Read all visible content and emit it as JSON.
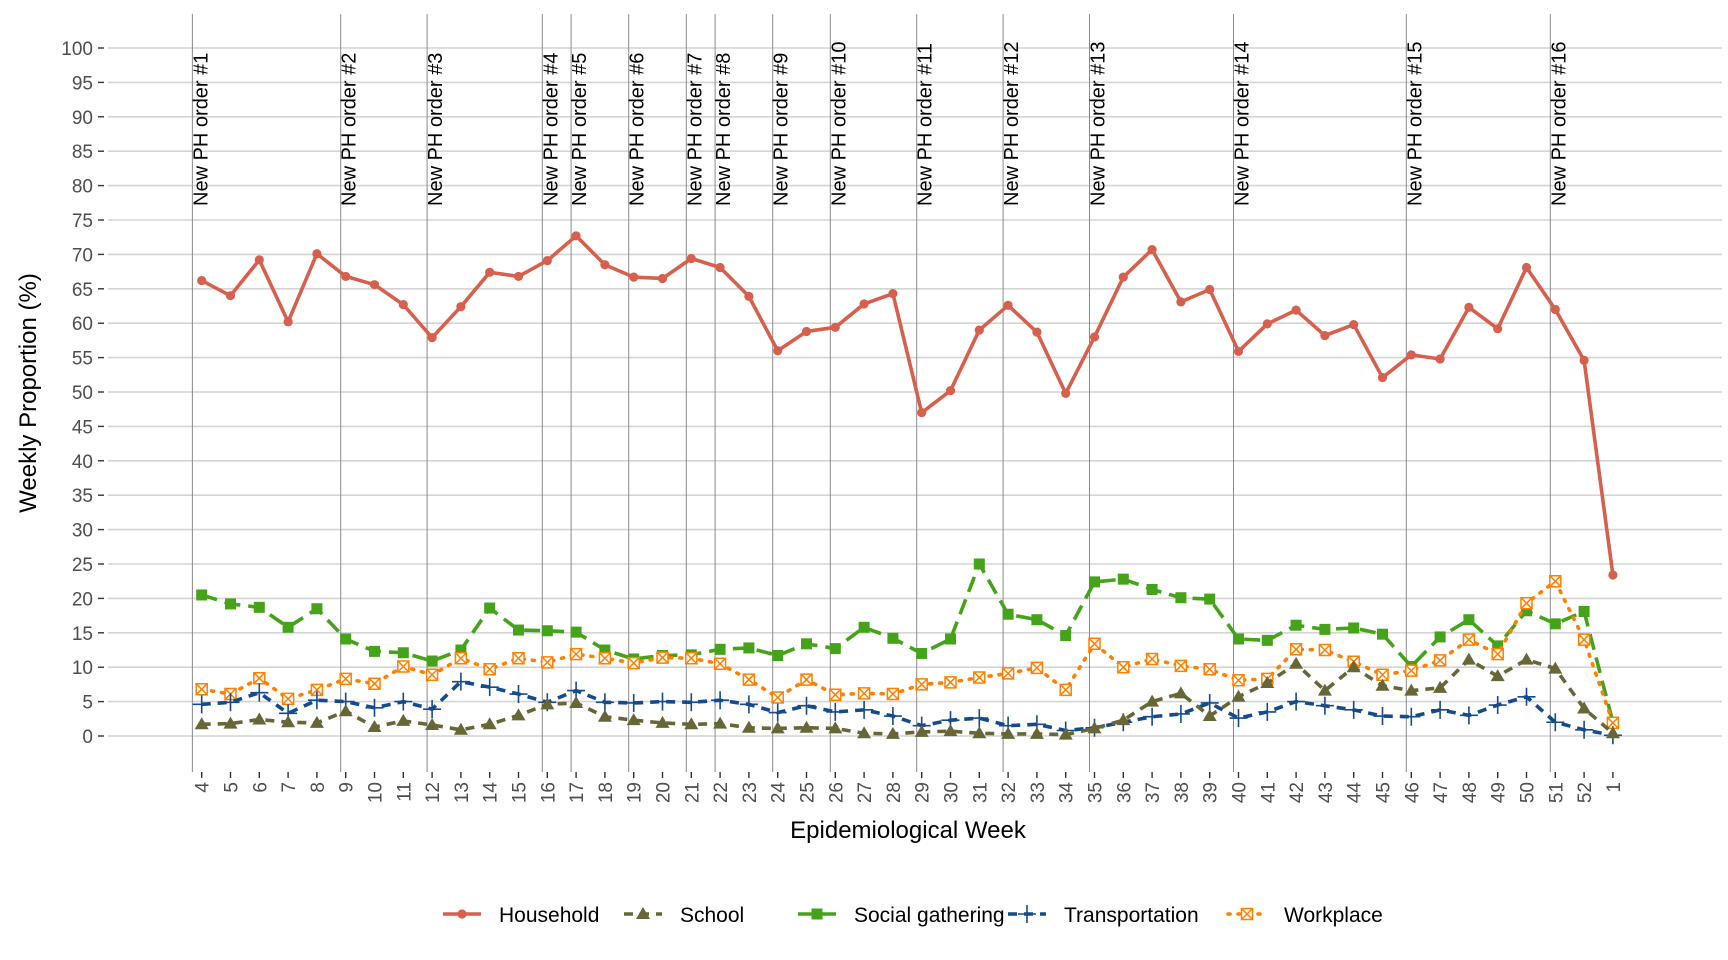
{
  "chart_data": {
    "type": "line",
    "title": "",
    "xlabel": "Epidemiological Week",
    "ylabel": "Weekly Proportion (%)",
    "ylim": [
      0,
      100
    ],
    "yticks": [
      0,
      5,
      10,
      15,
      20,
      25,
      30,
      35,
      40,
      45,
      50,
      55,
      60,
      65,
      70,
      75,
      80,
      85,
      90,
      95,
      100
    ],
    "grid": true,
    "legend_position": "bottom",
    "categories": [
      "4",
      "5",
      "6",
      "7",
      "8",
      "9",
      "10",
      "11",
      "12",
      "13",
      "14",
      "15",
      "16",
      "17",
      "18",
      "19",
      "20",
      "21",
      "22",
      "23",
      "24",
      "25",
      "26",
      "27",
      "28",
      "29",
      "30",
      "31",
      "32",
      "33",
      "34",
      "35",
      "36",
      "37",
      "38",
      "39",
      "40",
      "41",
      "42",
      "43",
      "44",
      "45",
      "46",
      "47",
      "48",
      "49",
      "50",
      "51",
      "52",
      "1"
    ],
    "series": [
      {
        "name": "Household",
        "color": "#D6604D",
        "marker": "circle",
        "linetype": "solid",
        "values": [
          66.2,
          64.0,
          69.2,
          60.2,
          70.1,
          66.8,
          65.6,
          62.7,
          57.9,
          62.4,
          67.4,
          66.8,
          69.1,
          72.7,
          68.5,
          66.7,
          66.5,
          69.4,
          68.1,
          63.9,
          56.0,
          58.8,
          59.4,
          62.8,
          64.3,
          47.0,
          50.2,
          59.0,
          62.6,
          58.7,
          49.8,
          58.0,
          66.7,
          70.7,
          63.1,
          64.9,
          55.9,
          59.9,
          61.9,
          58.2,
          59.8,
          52.1,
          55.4,
          54.8,
          62.3,
          59.2,
          68.1,
          62.0,
          54.6,
          23.4
        ]
      },
      {
        "name": "School",
        "color": "#676637",
        "marker": "triangle",
        "linetype": "dashed",
        "values": [
          1.7,
          1.8,
          2.4,
          2.0,
          1.9,
          3.6,
          1.3,
          2.2,
          1.6,
          0.9,
          1.7,
          3.0,
          4.6,
          4.8,
          2.8,
          2.3,
          1.9,
          1.7,
          1.8,
          1.2,
          1.1,
          1.2,
          1.1,
          0.4,
          0.3,
          0.6,
          0.7,
          0.4,
          0.3,
          0.3,
          0.2,
          1.1,
          2.3,
          5.0,
          6.2,
          2.9,
          5.7,
          7.7,
          10.5,
          6.6,
          10.0,
          7.3,
          6.6,
          7.0,
          11.1,
          8.7,
          11.1,
          9.8,
          4.0,
          0.4
        ]
      },
      {
        "name": "Social gathering",
        "color": "#44A319",
        "marker": "square",
        "linetype": "longdash",
        "values": [
          20.5,
          19.2,
          18.7,
          15.8,
          18.5,
          14.1,
          12.3,
          12.1,
          10.9,
          12.5,
          18.6,
          15.4,
          15.3,
          15.1,
          12.5,
          11.2,
          11.7,
          11.8,
          12.6,
          12.8,
          11.7,
          13.4,
          12.7,
          15.8,
          14.2,
          12.0,
          14.1,
          25.0,
          17.7,
          16.9,
          14.6,
          22.4,
          22.8,
          21.3,
          20.1,
          19.9,
          14.1,
          13.9,
          16.1,
          15.5,
          15.7,
          14.8,
          10.1,
          14.4,
          16.9,
          13.1,
          18.2,
          16.3,
          18.1,
          2.0
        ]
      },
      {
        "name": "Transportation",
        "color": "#154A8C",
        "marker": "plus",
        "linetype": "dashed",
        "values": [
          4.6,
          4.9,
          6.3,
          3.3,
          5.2,
          5.0,
          4.1,
          5.0,
          3.9,
          7.9,
          7.1,
          6.1,
          4.9,
          6.6,
          4.9,
          4.8,
          5.0,
          4.9,
          5.2,
          4.6,
          3.4,
          4.4,
          3.5,
          3.8,
          2.9,
          1.5,
          2.3,
          2.6,
          1.5,
          1.7,
          0.8,
          1.2,
          2.0,
          2.8,
          3.2,
          4.8,
          2.6,
          3.5,
          5.0,
          4.4,
          3.8,
          2.9,
          2.8,
          3.8,
          3.0,
          4.5,
          5.7,
          2.0,
          0.9,
          0.1
        ]
      },
      {
        "name": "Workplace",
        "color": "#FF7F00",
        "marker": "square-cross",
        "linetype": "dotted",
        "values": [
          6.8,
          6.1,
          8.4,
          5.4,
          6.7,
          8.3,
          7.6,
          10.1,
          8.9,
          11.3,
          9.7,
          11.3,
          10.7,
          11.9,
          11.3,
          10.6,
          11.4,
          11.3,
          10.5,
          8.2,
          5.6,
          8.2,
          6.0,
          6.2,
          6.1,
          7.5,
          7.8,
          8.5,
          9.1,
          9.9,
          6.7,
          13.4,
          10.0,
          11.2,
          10.2,
          9.7,
          8.1,
          8.3,
          12.6,
          12.5,
          10.8,
          8.9,
          9.5,
          11.0,
          14.0,
          11.9,
          19.3,
          22.5,
          14.0,
          1.9
        ]
      }
    ],
    "annotations": [
      {
        "label": "New PH order #1",
        "at_index": -0.15
      },
      {
        "label": "New PH order #2",
        "at_index": 5
      },
      {
        "label": "New PH order #3",
        "at_index": 8
      },
      {
        "label": "New PH order #4",
        "at_index": 12
      },
      {
        "label": "New PH order #5",
        "at_index": 13
      },
      {
        "label": "New PH order #6",
        "at_index": 15
      },
      {
        "label": "New PH order #7",
        "at_index": 17
      },
      {
        "label": "New PH order #8",
        "at_index": 18
      },
      {
        "label": "New PH order #9",
        "at_index": 20
      },
      {
        "label": "New PH order #10",
        "at_index": 22
      },
      {
        "label": "New PH order #11",
        "at_index": 25
      },
      {
        "label": "New PH order #12",
        "at_index": 28
      },
      {
        "label": "New PH order #13",
        "at_index": 31
      },
      {
        "label": "New PH order #14",
        "at_index": 36
      },
      {
        "label": "New PH order #15",
        "at_index": 42
      },
      {
        "label": "New PH order #16",
        "at_index": 47
      }
    ]
  }
}
